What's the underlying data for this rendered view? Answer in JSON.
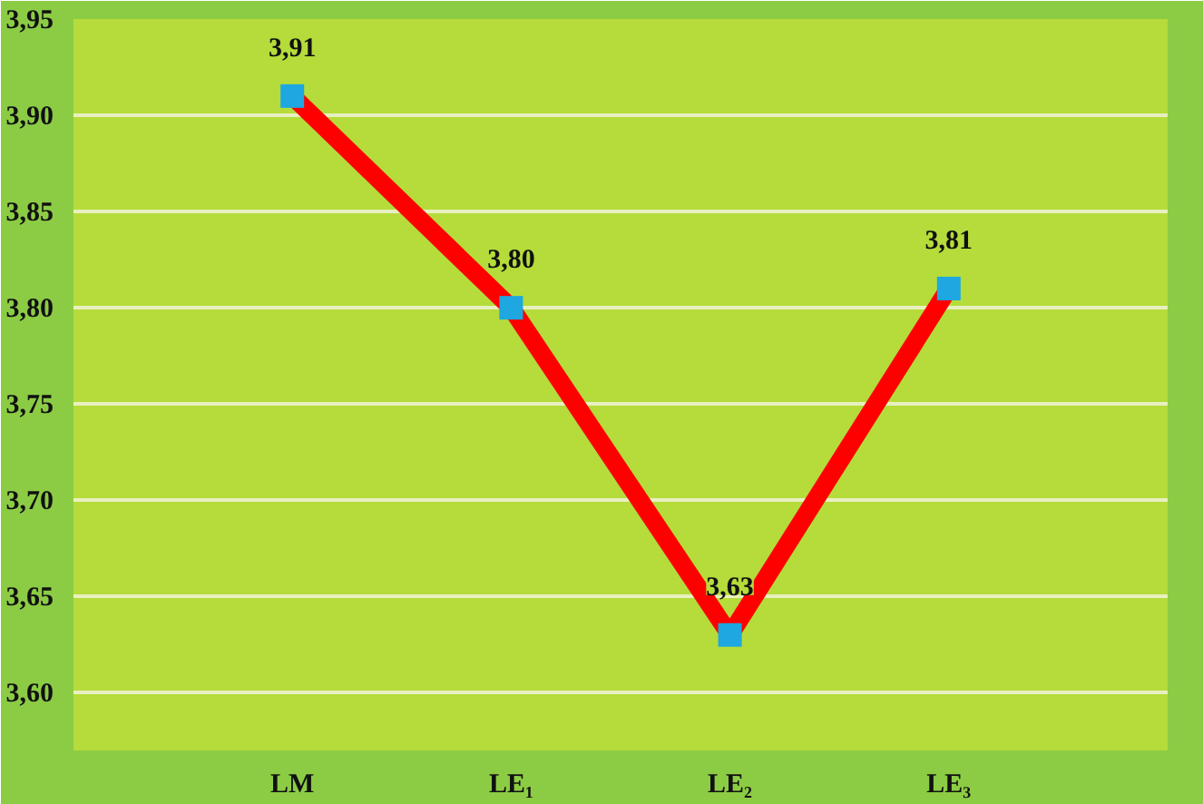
{
  "chart_data": {
    "type": "line",
    "categories": [
      "LM",
      "LE₁",
      "LE₂",
      "LE₃"
    ],
    "series": [
      {
        "color": "#ff0000",
        "values": [
          3.91,
          3.8,
          3.63,
          3.81
        ],
        "value_labels": [
          "3,91",
          "3,80",
          "3,63",
          "3,81"
        ],
        "colors": [
          "#1ea7e0",
          "#1ea7e0",
          "#1ea7e0",
          "#1ea7e0"
        ]
      }
    ],
    "ylim": [
      3.57,
      3.95
    ],
    "yticks": [
      {
        "value": 3.6,
        "label": "3,60"
      },
      {
        "value": 3.65,
        "label": "3,65"
      },
      {
        "value": 3.7,
        "label": "3,70"
      },
      {
        "value": 3.75,
        "label": "3,75"
      },
      {
        "value": 3.8,
        "label": "3,80"
      },
      {
        "value": 3.85,
        "label": "3,85"
      },
      {
        "value": 3.9,
        "label": "3,90"
      },
      {
        "value": 3.95,
        "label": "3,95"
      }
    ],
    "grid": "y",
    "marker": "square",
    "line_style": "solid"
  }
}
